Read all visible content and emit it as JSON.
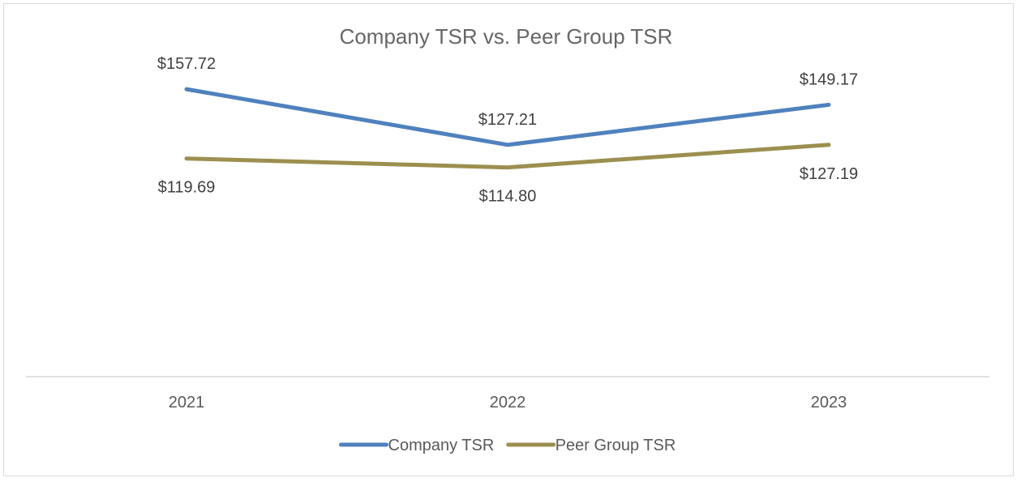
{
  "chart_data": {
    "type": "line",
    "title": "Company TSR vs. Peer Group TSR",
    "xlabel": "",
    "ylabel": "",
    "categories": [
      "2021",
      "2022",
      "2023"
    ],
    "series": [
      {
        "name": "Company TSR",
        "color": "#4f81bd",
        "values": [
          157.72,
          127.21,
          149.17
        ],
        "labels": [
          "$157.72",
          "$127.21",
          "$149.17"
        ],
        "label_position": "above"
      },
      {
        "name": "Peer Group TSR",
        "color": "#9c8f4f",
        "values": [
          119.69,
          114.8,
          127.19
        ],
        "labels": [
          "$119.69",
          "$114.80",
          "$127.19"
        ],
        "label_position": "below"
      }
    ],
    "ylim": [
      0,
      180
    ],
    "grid": false,
    "legend": "bottom"
  }
}
